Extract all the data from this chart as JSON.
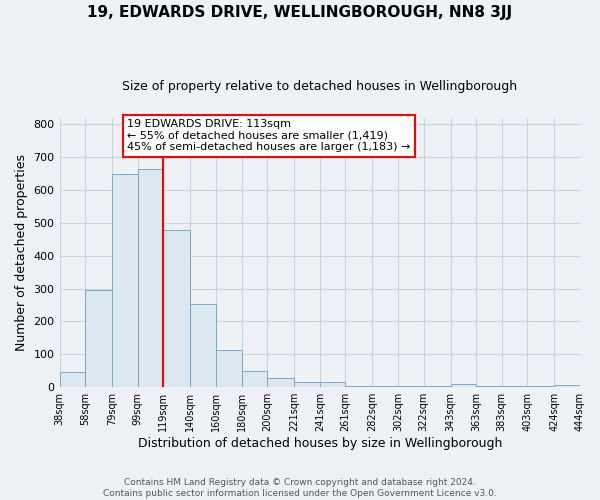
{
  "title": "19, EDWARDS DRIVE, WELLINGBOROUGH, NN8 3JJ",
  "subtitle": "Size of property relative to detached houses in Wellingborough",
  "xlabel": "Distribution of detached houses by size in Wellingborough",
  "ylabel": "Number of detached properties",
  "bar_left_edges": [
    38,
    58,
    79,
    99,
    119,
    140,
    160,
    180,
    200,
    221,
    241,
    261,
    282,
    302,
    322,
    343,
    363,
    383,
    403,
    424
  ],
  "bar_heights": [
    47,
    295,
    650,
    665,
    478,
    253,
    113,
    50,
    28,
    15,
    15,
    5,
    5,
    5,
    5,
    10,
    5,
    5,
    5,
    8
  ],
  "bar_widths": [
    20,
    21,
    20,
    20,
    21,
    20,
    20,
    20,
    21,
    20,
    20,
    21,
    20,
    20,
    21,
    20,
    20,
    20,
    21,
    20
  ],
  "bar_color": "#dce8f0",
  "bar_edgecolor": "#7aaac8",
  "vline_x": 119,
  "vline_color": "red",
  "annotation_line1": "19 EDWARDS DRIVE: 113sqm",
  "annotation_line2": "← 55% of detached houses are smaller (1,419)",
  "annotation_line3": "45% of semi-detached houses are larger (1,183) →",
  "xlim_left": 38,
  "xlim_right": 444,
  "ylim_top": 820,
  "ylim_bottom": 0,
  "yticks": [
    0,
    100,
    200,
    300,
    400,
    500,
    600,
    700,
    800
  ],
  "tick_labels": [
    "38sqm",
    "58sqm",
    "79sqm",
    "99sqm",
    "119sqm",
    "140sqm",
    "160sqm",
    "180sqm",
    "200sqm",
    "221sqm",
    "241sqm",
    "261sqm",
    "282sqm",
    "302sqm",
    "322sqm",
    "343sqm",
    "363sqm",
    "383sqm",
    "403sqm",
    "424sqm",
    "444sqm"
  ],
  "tick_positions": [
    38,
    58,
    79,
    99,
    119,
    140,
    160,
    180,
    200,
    221,
    241,
    261,
    282,
    302,
    322,
    343,
    363,
    383,
    403,
    424,
    444
  ],
  "footer_text": "Contains HM Land Registry data © Crown copyright and database right 2024.\nContains public sector information licensed under the Open Government Licence v3.0.",
  "grid_color": "#c8d4e0",
  "background_color": "#eef2f7",
  "title_fontsize": 11,
  "subtitle_fontsize": 9,
  "ylabel_fontsize": 9,
  "xlabel_fontsize": 9,
  "tick_fontsize": 7,
  "annotation_fontsize": 8,
  "footer_fontsize": 6.5
}
